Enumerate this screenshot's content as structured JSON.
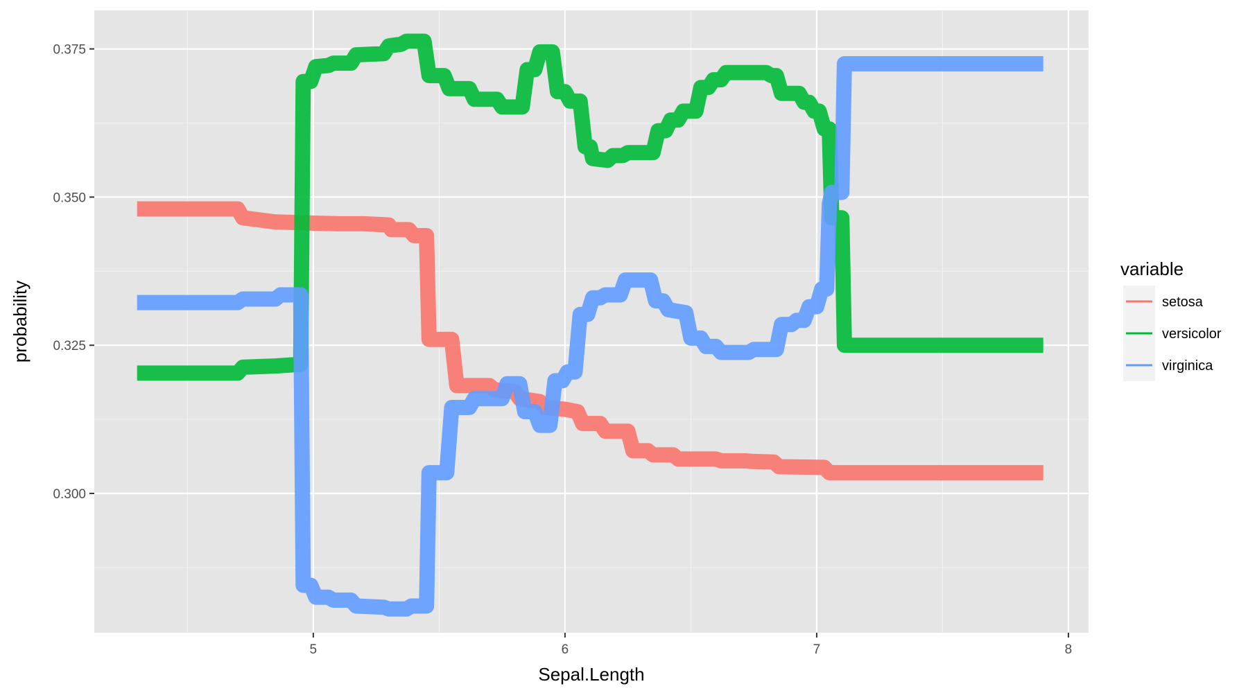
{
  "chart_data": {
    "type": "line",
    "title": "",
    "xlabel": "Sepal.Length",
    "ylabel": "probability",
    "xlim": [
      4.13,
      8.08
    ],
    "ylim": [
      0.2765,
      0.3815
    ],
    "x_ticks": [
      5,
      6,
      7,
      8
    ],
    "x_tick_labels": [
      "5",
      "6",
      "7",
      "8"
    ],
    "y_ticks": [
      0.3,
      0.325,
      0.35,
      0.375
    ],
    "y_tick_labels": [
      "0.300",
      "0.325",
      "0.350",
      "0.375"
    ],
    "grid": true,
    "legend": {
      "title": "variable",
      "position": "right"
    },
    "series": [
      {
        "name": "setosa",
        "color": "#F8766D",
        "points": [
          [
            4.3,
            0.348
          ],
          [
            4.7,
            0.348
          ],
          [
            4.72,
            0.3465
          ],
          [
            4.85,
            0.3458
          ],
          [
            4.95,
            0.3457
          ],
          [
            5.0,
            0.3456
          ],
          [
            5.1,
            0.3455
          ],
          [
            5.2,
            0.3455
          ],
          [
            5.3,
            0.3453
          ],
          [
            5.31,
            0.3445
          ],
          [
            5.38,
            0.3445
          ],
          [
            5.4,
            0.3435
          ],
          [
            5.45,
            0.3435
          ],
          [
            5.46,
            0.326
          ],
          [
            5.55,
            0.326
          ],
          [
            5.57,
            0.3182
          ],
          [
            5.7,
            0.3182
          ],
          [
            5.72,
            0.3175
          ],
          [
            5.8,
            0.3172
          ],
          [
            5.82,
            0.316
          ],
          [
            5.9,
            0.3155
          ],
          [
            5.92,
            0.3145
          ],
          [
            6.0,
            0.3142
          ],
          [
            6.05,
            0.3138
          ],
          [
            6.07,
            0.3118
          ],
          [
            6.14,
            0.3118
          ],
          [
            6.16,
            0.3105
          ],
          [
            6.25,
            0.3105
          ],
          [
            6.27,
            0.3072
          ],
          [
            6.33,
            0.3072
          ],
          [
            6.35,
            0.3065
          ],
          [
            6.43,
            0.3065
          ],
          [
            6.45,
            0.3058
          ],
          [
            6.6,
            0.3058
          ],
          [
            6.62,
            0.3055
          ],
          [
            6.72,
            0.3055
          ],
          [
            6.74,
            0.3054
          ],
          [
            6.83,
            0.3053
          ],
          [
            6.85,
            0.3045
          ],
          [
            7.03,
            0.3044
          ],
          [
            7.05,
            0.3035
          ],
          [
            7.9,
            0.3035
          ]
        ]
      },
      {
        "name": "versicolor",
        "color": "#00BA38",
        "points": [
          [
            4.3,
            0.3203
          ],
          [
            4.7,
            0.3203
          ],
          [
            4.72,
            0.3213
          ],
          [
            4.85,
            0.3215
          ],
          [
            4.95,
            0.3218
          ],
          [
            4.96,
            0.3695
          ],
          [
            4.99,
            0.3695
          ],
          [
            5.01,
            0.372
          ],
          [
            5.06,
            0.3722
          ],
          [
            5.08,
            0.3726
          ],
          [
            5.15,
            0.3726
          ],
          [
            5.17,
            0.374
          ],
          [
            5.28,
            0.3742
          ],
          [
            5.3,
            0.3755
          ],
          [
            5.35,
            0.3758
          ],
          [
            5.37,
            0.3763
          ],
          [
            5.44,
            0.3763
          ],
          [
            5.46,
            0.3705
          ],
          [
            5.52,
            0.3705
          ],
          [
            5.54,
            0.3683
          ],
          [
            5.62,
            0.3683
          ],
          [
            5.64,
            0.3665
          ],
          [
            5.73,
            0.3665
          ],
          [
            5.75,
            0.3652
          ],
          [
            5.83,
            0.3652
          ],
          [
            5.85,
            0.3715
          ],
          [
            5.88,
            0.3715
          ],
          [
            5.9,
            0.3745
          ],
          [
            5.95,
            0.3745
          ],
          [
            5.97,
            0.3678
          ],
          [
            6.0,
            0.3678
          ],
          [
            6.02,
            0.3662
          ],
          [
            6.06,
            0.3662
          ],
          [
            6.08,
            0.3585
          ],
          [
            6.1,
            0.3585
          ],
          [
            6.11,
            0.3565
          ],
          [
            6.17,
            0.3562
          ],
          [
            6.19,
            0.357
          ],
          [
            6.23,
            0.357
          ],
          [
            6.25,
            0.3575
          ],
          [
            6.35,
            0.3575
          ],
          [
            6.37,
            0.3612
          ],
          [
            6.4,
            0.3612
          ],
          [
            6.42,
            0.363
          ],
          [
            6.45,
            0.363
          ],
          [
            6.47,
            0.3645
          ],
          [
            6.52,
            0.3645
          ],
          [
            6.54,
            0.3685
          ],
          [
            6.57,
            0.3685
          ],
          [
            6.59,
            0.3698
          ],
          [
            6.62,
            0.3698
          ],
          [
            6.64,
            0.371
          ],
          [
            6.8,
            0.371
          ],
          [
            6.82,
            0.3705
          ],
          [
            6.84,
            0.3705
          ],
          [
            6.86,
            0.3675
          ],
          [
            6.93,
            0.3675
          ],
          [
            6.95,
            0.366
          ],
          [
            6.97,
            0.366
          ],
          [
            6.99,
            0.3645
          ],
          [
            7.01,
            0.3645
          ],
          [
            7.03,
            0.3615
          ],
          [
            7.05,
            0.3615
          ],
          [
            7.06,
            0.3465
          ],
          [
            7.1,
            0.3465
          ],
          [
            7.11,
            0.325
          ],
          [
            7.9,
            0.325
          ]
        ]
      },
      {
        "name": "virginica",
        "color": "#619CFF",
        "points": [
          [
            4.3,
            0.3322
          ],
          [
            4.7,
            0.3322
          ],
          [
            4.72,
            0.3328
          ],
          [
            4.85,
            0.3328
          ],
          [
            4.87,
            0.3335
          ],
          [
            4.95,
            0.3335
          ],
          [
            4.96,
            0.2845
          ],
          [
            4.99,
            0.2845
          ],
          [
            5.01,
            0.2825
          ],
          [
            5.06,
            0.2825
          ],
          [
            5.08,
            0.282
          ],
          [
            5.15,
            0.282
          ],
          [
            5.17,
            0.281
          ],
          [
            5.28,
            0.2808
          ],
          [
            5.3,
            0.2805
          ],
          [
            5.37,
            0.2805
          ],
          [
            5.39,
            0.281
          ],
          [
            5.45,
            0.281
          ],
          [
            5.46,
            0.3035
          ],
          [
            5.53,
            0.3035
          ],
          [
            5.55,
            0.3145
          ],
          [
            5.62,
            0.3145
          ],
          [
            5.64,
            0.316
          ],
          [
            5.75,
            0.316
          ],
          [
            5.77,
            0.3185
          ],
          [
            5.82,
            0.3185
          ],
          [
            5.84,
            0.3138
          ],
          [
            5.88,
            0.3138
          ],
          [
            5.9,
            0.3115
          ],
          [
            5.94,
            0.3115
          ],
          [
            5.96,
            0.319
          ],
          [
            5.99,
            0.319
          ],
          [
            6.01,
            0.3205
          ],
          [
            6.04,
            0.3205
          ],
          [
            6.06,
            0.3302
          ],
          [
            6.09,
            0.3302
          ],
          [
            6.11,
            0.333
          ],
          [
            6.14,
            0.333
          ],
          [
            6.16,
            0.3335
          ],
          [
            6.22,
            0.3335
          ],
          [
            6.24,
            0.336
          ],
          [
            6.34,
            0.336
          ],
          [
            6.36,
            0.3325
          ],
          [
            6.39,
            0.3325
          ],
          [
            6.41,
            0.331
          ],
          [
            6.48,
            0.3305
          ],
          [
            6.5,
            0.3262
          ],
          [
            6.54,
            0.3262
          ],
          [
            6.56,
            0.3248
          ],
          [
            6.6,
            0.3248
          ],
          [
            6.62,
            0.3238
          ],
          [
            6.73,
            0.3238
          ],
          [
            6.75,
            0.3243
          ],
          [
            6.84,
            0.3243
          ],
          [
            6.86,
            0.3285
          ],
          [
            6.9,
            0.3285
          ],
          [
            6.92,
            0.3292
          ],
          [
            6.95,
            0.3292
          ],
          [
            6.97,
            0.3315
          ],
          [
            7.0,
            0.3315
          ],
          [
            7.02,
            0.3345
          ],
          [
            7.04,
            0.3345
          ],
          [
            7.05,
            0.3488
          ],
          [
            7.06,
            0.3508
          ],
          [
            7.08,
            0.3508
          ],
          [
            7.1,
            0.3508
          ],
          [
            7.11,
            0.3725
          ],
          [
            7.9,
            0.3725
          ]
        ]
      }
    ]
  }
}
